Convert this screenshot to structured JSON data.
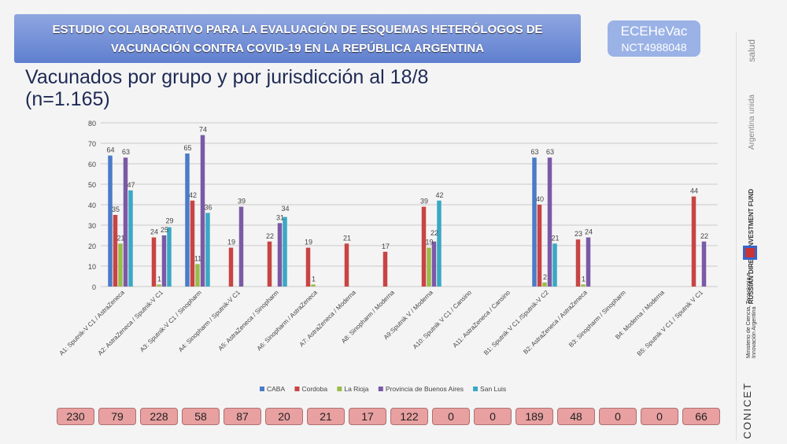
{
  "header": {
    "line1": "ESTUDIO COLABORATIVO PARA LA EVALUACIÓN DE ESQUEMAS HETERÓLOGOS DE",
    "line2": "VACUNACIÓN CONTRA COVID-19 EN LA REPÚBLICA ARGENTINA"
  },
  "badge": {
    "name": "ECEHeVac",
    "id": "NCT4988048"
  },
  "title": {
    "line1": "Vacunados por grupo y por jurisdicción al 18/8",
    "line2": "(n=1.165)"
  },
  "side": {
    "salud": "salud",
    "argentina_unida": "Argentina unida",
    "rdif": "RUSSIAN DIRECT INVESTMENT FUND",
    "ministerio": "Ministerio de Ciencia, Tecnología e Innovación Argentina",
    "conicet": "CONICET"
  },
  "chart_data": {
    "type": "bar",
    "title": "",
    "xlabel": "",
    "ylabel": "",
    "ylim": [
      0,
      80
    ],
    "yticks": [
      0,
      10,
      20,
      30,
      40,
      50,
      60,
      70,
      80
    ],
    "grid": true,
    "legend": "bottom",
    "categories": [
      "A1: Sputnik-V C1 / AstraZeneca",
      "A2: AstraZeneca / Sputnik-V C1",
      "A3: Sputnik-V C1 / Sinopharm",
      "A4: Sinopharm / Sputnik-V C1",
      "A5: AstraZeneca / Sinopharm",
      "A6: Sinopharm / AstraZeneca",
      "A7: AstraZeneca / Moderna",
      "A8: Sinopharm / Moderna",
      "A9:Sputnik V / Moderna",
      "A10: Sputnik V C1 / Cansino",
      "A11: AstraZeneca / Cansino",
      "B1: Sputnik V C1 /Sputnik-V C2",
      "B2: AstraZeneca / AstraZeneca",
      "B3: Sinopharm / Sinopharm",
      "B4: Moderna / Moderna",
      "B5: Sputnik V C1 / Sputnik V C1"
    ],
    "series": [
      {
        "name": "CABA",
        "color": "#4a7bc8",
        "values": [
          64,
          null,
          65,
          null,
          null,
          null,
          null,
          null,
          null,
          null,
          null,
          63,
          null,
          null,
          null,
          null
        ]
      },
      {
        "name": "Cordoba",
        "color": "#c84444",
        "values": [
          35,
          24,
          42,
          19,
          22,
          19,
          21,
          17,
          39,
          null,
          null,
          40,
          23,
          null,
          null,
          44
        ]
      },
      {
        "name": "La Rioja",
        "color": "#9bbb4a",
        "values": [
          21,
          1,
          11,
          null,
          null,
          1,
          null,
          null,
          19,
          null,
          null,
          2,
          1,
          null,
          null,
          null
        ]
      },
      {
        "name": "Provincia de Buenos Aires",
        "color": "#7a5aa6",
        "values": [
          63,
          25,
          74,
          39,
          31,
          null,
          null,
          null,
          22,
          null,
          null,
          63,
          24,
          null,
          null,
          22
        ]
      },
      {
        "name": "San Luis",
        "color": "#3aa8c4",
        "values": [
          47,
          29,
          36,
          null,
          34,
          null,
          null,
          null,
          42,
          null,
          null,
          21,
          null,
          null,
          null,
          null
        ]
      }
    ]
  },
  "totals": [
    "230",
    "79",
    "228",
    "58",
    "87",
    "20",
    "21",
    "17",
    "122",
    "0",
    "0",
    "189",
    "48",
    "0",
    "0",
    "66"
  ]
}
